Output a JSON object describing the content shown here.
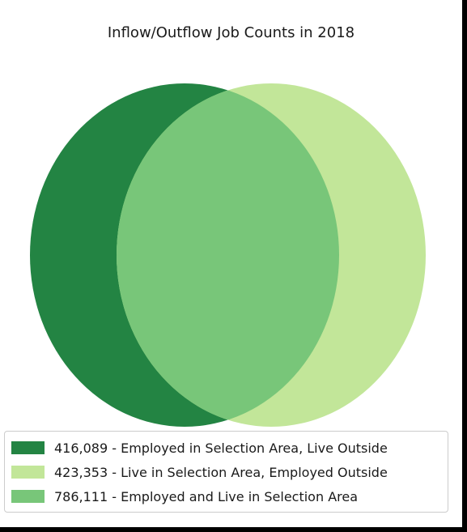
{
  "chart_data": {
    "type": "venn",
    "title": "Inflow/Outflow Job Counts in 2018",
    "sets": [
      {
        "value": "416,089",
        "label": "Employed in Selection Area, Live Outside",
        "legend_text": "416,089 - Employed in Selection Area, Live Outside",
        "color": "#238443"
      },
      {
        "value": "423,353",
        "label": "Live in Selection Area, Employed Outside",
        "legend_text": "423,353 - Live in Selection Area, Employed Outside",
        "color": "#c2e699"
      },
      {
        "value": "786,111",
        "label": "Employed and Live in Selection Area",
        "legend_text": "786,111 - Employed and Live in Selection Area",
        "color": "#78c679"
      }
    ],
    "legend_position": "bottom"
  }
}
